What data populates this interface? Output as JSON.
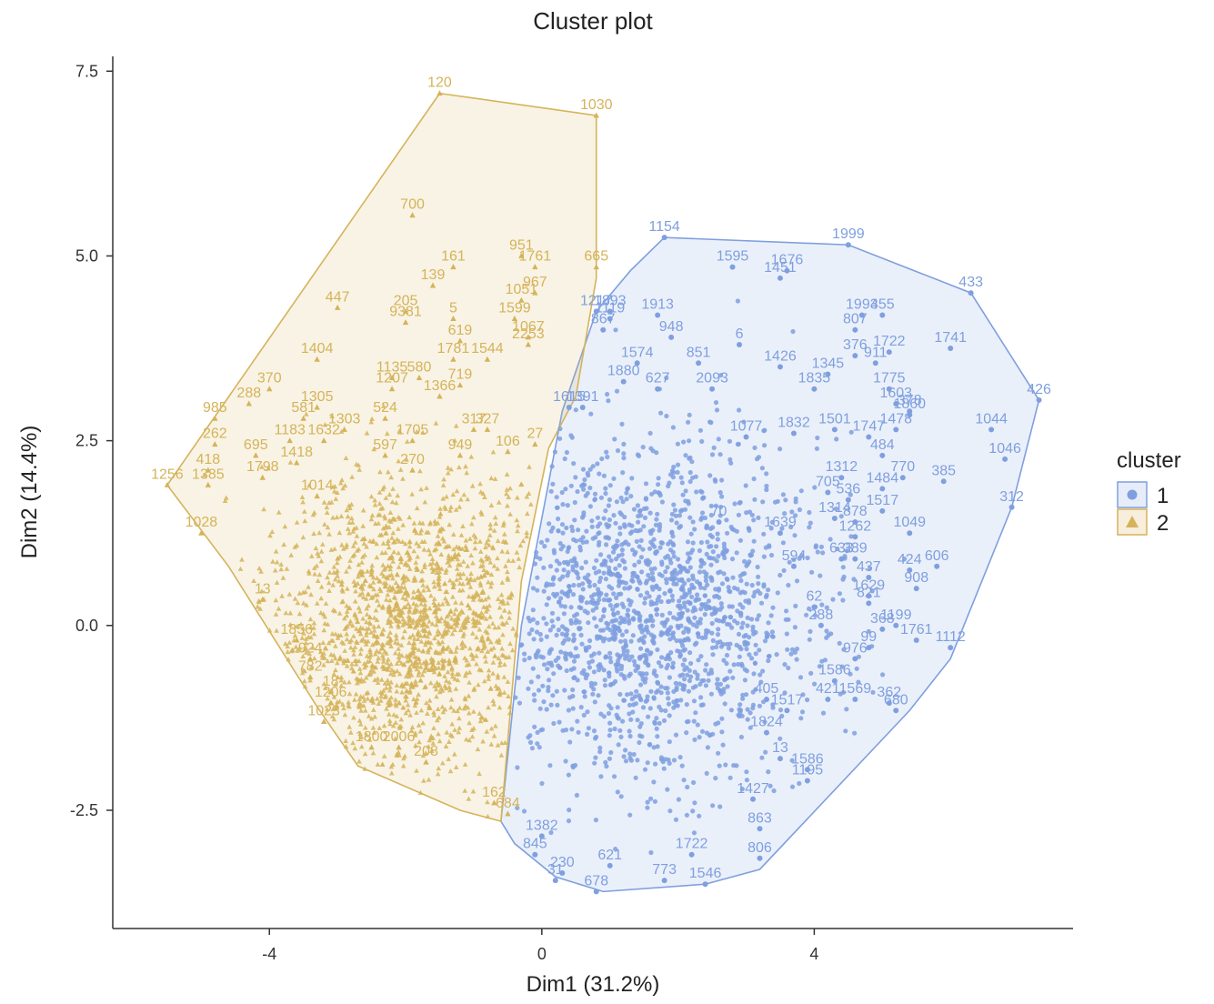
{
  "chart_data": {
    "type": "scatter",
    "title": "Cluster plot",
    "xlabel": "Dim1 (31.2%)",
    "ylabel": "Dim2 (14.4%)",
    "xlim": [
      -6.3,
      7.8
    ],
    "ylim": [
      -4.1,
      7.7
    ],
    "xticks": [
      -4,
      0,
      4
    ],
    "xtick_labels": [
      "-4",
      "0",
      "4"
    ],
    "yticks": [
      -2.5,
      0,
      2.5,
      5,
      7.5
    ],
    "ytick_labels": [
      "-2.5",
      "0.0",
      "2.5",
      "5.0",
      "7.5"
    ],
    "grid": false,
    "legend": {
      "title": "cluster",
      "position": "right"
    },
    "series": [
      {
        "name": "1",
        "color": "#7f9fdf",
        "marker": "circle",
        "hull": [
          [
            1.8,
            5.25
          ],
          [
            4.5,
            5.15
          ],
          [
            6.3,
            4.5
          ],
          [
            7.3,
            3.05
          ],
          [
            6.9,
            1.6
          ],
          [
            6.0,
            -0.45
          ],
          [
            5.4,
            -1.15
          ],
          [
            3.2,
            -3.3
          ],
          [
            2.4,
            -3.5
          ],
          [
            0.9,
            -3.6
          ],
          [
            0.2,
            -3.4
          ],
          [
            -0.4,
            -2.95
          ],
          [
            -0.6,
            -2.65
          ],
          [
            -0.3,
            0.0
          ],
          [
            0.3,
            2.9
          ],
          [
            0.8,
            4.25
          ],
          [
            1.3,
            4.8
          ]
        ],
        "labeled_points": [
          {
            "x": 1.8,
            "y": 5.25,
            "label": "1154"
          },
          {
            "x": 4.5,
            "y": 5.15,
            "label": "1999"
          },
          {
            "x": 6.3,
            "y": 4.5,
            "label": "433"
          },
          {
            "x": 7.3,
            "y": 3.05,
            "label": "426"
          },
          {
            "x": 6.0,
            "y": 3.75,
            "label": "1741"
          },
          {
            "x": 6.6,
            "y": 2.65,
            "label": "1044"
          },
          {
            "x": 6.8,
            "y": 2.25,
            "label": "1046"
          },
          {
            "x": 5.9,
            "y": 1.95,
            "label": "385"
          },
          {
            "x": 6.9,
            "y": 1.6,
            "label": "312"
          },
          {
            "x": 5.4,
            "y": 1.25,
            "label": "1049"
          },
          {
            "x": 5.8,
            "y": 0.8,
            "label": "606"
          },
          {
            "x": 5.4,
            "y": 0.75,
            "label": "424"
          },
          {
            "x": 5.5,
            "y": 0.5,
            "label": "908"
          },
          {
            "x": 6.0,
            "y": -0.3,
            "label": "1112"
          },
          {
            "x": 4.8,
            "y": 0.4,
            "label": "1629"
          },
          {
            "x": 5.2,
            "y": 0.0,
            "label": "1199"
          },
          {
            "x": 5.5,
            "y": -0.2,
            "label": "1761"
          },
          {
            "x": 5.0,
            "y": -0.05,
            "label": "368"
          },
          {
            "x": 5.2,
            "y": -1.15,
            "label": "680"
          },
          {
            "x": 5.1,
            "y": -1.05,
            "label": "362"
          },
          {
            "x": 4.6,
            "y": -1.0,
            "label": "1569"
          },
          {
            "x": 4.2,
            "y": -1.0,
            "label": "421"
          },
          {
            "x": 4.3,
            "y": -0.75,
            "label": "1586"
          },
          {
            "x": 4.6,
            "y": -0.45,
            "label": "976"
          },
          {
            "x": 4.8,
            "y": -0.3,
            "label": "99"
          },
          {
            "x": 4.1,
            "y": 0.0,
            "label": "288"
          },
          {
            "x": 3.9,
            "y": -1.95,
            "label": "1586"
          },
          {
            "x": 3.9,
            "y": -2.1,
            "label": "1195"
          },
          {
            "x": 3.5,
            "y": -1.8,
            "label": "13"
          },
          {
            "x": 3.1,
            "y": -2.35,
            "label": "1427"
          },
          {
            "x": 3.2,
            "y": -2.75,
            "label": "863"
          },
          {
            "x": 3.2,
            "y": -3.15,
            "label": "806"
          },
          {
            "x": 2.4,
            "y": -3.5,
            "label": "1546"
          },
          {
            "x": 2.2,
            "y": -3.1,
            "label": "1722"
          },
          {
            "x": 1.8,
            "y": -3.45,
            "label": "773"
          },
          {
            "x": 0.8,
            "y": -3.6,
            "label": "678"
          },
          {
            "x": 1.0,
            "y": -3.25,
            "label": "621"
          },
          {
            "x": 0.3,
            "y": -3.35,
            "label": "230"
          },
          {
            "x": 0.2,
            "y": -3.45,
            "label": "31"
          },
          {
            "x": -0.1,
            "y": -3.1,
            "label": "845"
          },
          {
            "x": 0.0,
            "y": -2.85,
            "label": "1382"
          },
          {
            "x": 2.8,
            "y": 4.85,
            "label": "1595"
          },
          {
            "x": 3.6,
            "y": 4.8,
            "label": "1676"
          },
          {
            "x": 3.5,
            "y": 4.7,
            "label": "1451"
          },
          {
            "x": 4.7,
            "y": 4.2,
            "label": "1993"
          },
          {
            "x": 5.0,
            "y": 4.2,
            "label": "455"
          },
          {
            "x": 4.6,
            "y": 4.0,
            "label": "807"
          },
          {
            "x": 1.7,
            "y": 4.2,
            "label": "1913"
          },
          {
            "x": 1.9,
            "y": 3.9,
            "label": "948"
          },
          {
            "x": 2.9,
            "y": 3.8,
            "label": "6"
          },
          {
            "x": 1.4,
            "y": 3.55,
            "label": "1574"
          },
          {
            "x": 2.3,
            "y": 3.55,
            "label": "851"
          },
          {
            "x": 3.5,
            "y": 3.5,
            "label": "1426"
          },
          {
            "x": 4.2,
            "y": 3.4,
            "label": "1345"
          },
          {
            "x": 4.6,
            "y": 3.65,
            "label": "376"
          },
          {
            "x": 4.9,
            "y": 3.55,
            "label": "911"
          },
          {
            "x": 5.1,
            "y": 3.7,
            "label": "1722"
          },
          {
            "x": 5.1,
            "y": 3.2,
            "label": "1775"
          },
          {
            "x": 5.2,
            "y": 3.0,
            "label": "1603"
          },
          {
            "x": 5.4,
            "y": 2.9,
            "label": "378"
          },
          {
            "x": 5.4,
            "y": 2.85,
            "label": "1860"
          },
          {
            "x": 5.2,
            "y": 2.65,
            "label": "1478"
          },
          {
            "x": 4.8,
            "y": 2.55,
            "label": "1747"
          },
          {
            "x": 5.0,
            "y": 2.3,
            "label": "484"
          },
          {
            "x": 5.3,
            "y": 2.0,
            "label": "770"
          },
          {
            "x": 5.0,
            "y": 1.85,
            "label": "1484"
          },
          {
            "x": 5.0,
            "y": 1.55,
            "label": "1517"
          },
          {
            "x": 4.5,
            "y": 1.7,
            "label": "536"
          },
          {
            "x": 4.6,
            "y": 1.4,
            "label": "878"
          },
          {
            "x": 4.3,
            "y": 1.45,
            "label": "1314"
          },
          {
            "x": 4.2,
            "y": 1.8,
            "label": "705"
          },
          {
            "x": 4.4,
            "y": 2.0,
            "label": "1312"
          },
          {
            "x": 4.3,
            "y": 2.65,
            "label": "1501"
          },
          {
            "x": 3.7,
            "y": 2.6,
            "label": "1832"
          },
          {
            "x": 3.0,
            "y": 2.55,
            "label": "1077"
          },
          {
            "x": 2.5,
            "y": 3.2,
            "label": "2093"
          },
          {
            "x": 4.0,
            "y": 3.2,
            "label": "1835"
          },
          {
            "x": 4.4,
            "y": 0.9,
            "label": "633"
          },
          {
            "x": 4.6,
            "y": 1.2,
            "label": "1262"
          },
          {
            "x": 4.6,
            "y": 0.9,
            "label": "389"
          },
          {
            "x": 4.8,
            "y": 0.65,
            "label": "437"
          },
          {
            "x": 4.8,
            "y": 0.3,
            "label": "821"
          },
          {
            "x": 3.7,
            "y": 0.8,
            "label": "594"
          },
          {
            "x": 3.5,
            "y": 1.25,
            "label": "1639"
          },
          {
            "x": 4.0,
            "y": 0.25,
            "label": "62"
          },
          {
            "x": 3.3,
            "y": -1.0,
            "label": "405"
          },
          {
            "x": 3.6,
            "y": -1.15,
            "label": "1517"
          },
          {
            "x": 3.3,
            "y": -1.45,
            "label": "1824"
          },
          {
            "x": 2.6,
            "y": 1.4,
            "label": "70"
          },
          {
            "x": 0.4,
            "y": 2.95,
            "label": "1615"
          },
          {
            "x": 0.6,
            "y": 2.95,
            "label": "1391"
          },
          {
            "x": 1.2,
            "y": 3.3,
            "label": "1880"
          },
          {
            "x": 1.7,
            "y": 3.2,
            "label": "627"
          },
          {
            "x": 0.8,
            "y": 4.25,
            "label": "1217"
          },
          {
            "x": 1.0,
            "y": 4.25,
            "label": "1893"
          },
          {
            "x": 1.0,
            "y": 4.15,
            "label": "1119"
          },
          {
            "x": 0.9,
            "y": 4.0,
            "label": "867"
          }
        ]
      },
      {
        "name": "2",
        "color": "#d5b35a",
        "marker": "triangle",
        "hull": [
          [
            -1.5,
            7.2
          ],
          [
            0.8,
            6.9
          ],
          [
            0.8,
            4.7
          ],
          [
            0.5,
            3.1
          ],
          [
            0.1,
            2.4
          ],
          [
            -0.3,
            0.6
          ],
          [
            -0.6,
            -2.65
          ],
          [
            -1.2,
            -2.5
          ],
          [
            -2.7,
            -1.9
          ],
          [
            -3.3,
            -1.1
          ],
          [
            -4.6,
            0.8
          ],
          [
            -5.5,
            1.9
          ]
        ],
        "labeled_points": [
          {
            "x": -1.5,
            "y": 7.2,
            "label": "120"
          },
          {
            "x": 0.8,
            "y": 6.9,
            "label": "1030"
          },
          {
            "x": -1.9,
            "y": 5.55,
            "label": "700"
          },
          {
            "x": -1.3,
            "y": 4.85,
            "label": "161"
          },
          {
            "x": -0.3,
            "y": 5.0,
            "label": "951"
          },
          {
            "x": -0.1,
            "y": 4.85,
            "label": "1761"
          },
          {
            "x": 0.8,
            "y": 4.85,
            "label": "665"
          },
          {
            "x": -1.6,
            "y": 4.6,
            "label": "139"
          },
          {
            "x": -3.0,
            "y": 4.3,
            "label": "447"
          },
          {
            "x": -2.0,
            "y": 4.25,
            "label": "205"
          },
          {
            "x": -0.3,
            "y": 4.4,
            "label": "1051"
          },
          {
            "x": -0.1,
            "y": 4.5,
            "label": "967"
          },
          {
            "x": -2.0,
            "y": 4.1,
            "label": "9381"
          },
          {
            "x": -1.3,
            "y": 4.15,
            "label": "5"
          },
          {
            "x": -0.4,
            "y": 4.15,
            "label": "1599"
          },
          {
            "x": -1.2,
            "y": 3.85,
            "label": "619"
          },
          {
            "x": -0.2,
            "y": 3.9,
            "label": "1067"
          },
          {
            "x": -0.2,
            "y": 3.8,
            "label": "2253"
          },
          {
            "x": -3.3,
            "y": 3.6,
            "label": "1404"
          },
          {
            "x": -1.3,
            "y": 3.6,
            "label": "1781"
          },
          {
            "x": -0.8,
            "y": 3.6,
            "label": "1544"
          },
          {
            "x": -2.2,
            "y": 3.35,
            "label": "1135"
          },
          {
            "x": -1.8,
            "y": 3.35,
            "label": "580"
          },
          {
            "x": -1.2,
            "y": 3.25,
            "label": "719"
          },
          {
            "x": -4.0,
            "y": 3.2,
            "label": "370"
          },
          {
            "x": -4.3,
            "y": 3.0,
            "label": "288"
          },
          {
            "x": -2.2,
            "y": 3.2,
            "label": "1207"
          },
          {
            "x": -1.5,
            "y": 3.1,
            "label": "1366"
          },
          {
            "x": -3.3,
            "y": 2.95,
            "label": "1305"
          },
          {
            "x": -4.8,
            "y": 2.8,
            "label": "985"
          },
          {
            "x": -3.5,
            "y": 2.8,
            "label": "581"
          },
          {
            "x": -2.3,
            "y": 2.8,
            "label": "524"
          },
          {
            "x": -2.9,
            "y": 2.65,
            "label": "1303"
          },
          {
            "x": -1.0,
            "y": 2.65,
            "label": "317"
          },
          {
            "x": -0.8,
            "y": 2.65,
            "label": "327"
          },
          {
            "x": -3.7,
            "y": 2.5,
            "label": "1183"
          },
          {
            "x": -3.2,
            "y": 2.5,
            "label": "1632"
          },
          {
            "x": -1.9,
            "y": 2.5,
            "label": "1705"
          },
          {
            "x": -4.8,
            "y": 2.45,
            "label": "262"
          },
          {
            "x": -2.3,
            "y": 2.3,
            "label": "597"
          },
          {
            "x": -0.5,
            "y": 2.35,
            "label": "106"
          },
          {
            "x": -0.1,
            "y": 2.45,
            "label": "27"
          },
          {
            "x": -4.2,
            "y": 2.3,
            "label": "695"
          },
          {
            "x": -1.2,
            "y": 2.3,
            "label": "949"
          },
          {
            "x": -4.9,
            "y": 2.1,
            "label": "418"
          },
          {
            "x": -3.6,
            "y": 2.2,
            "label": "1418"
          },
          {
            "x": -1.9,
            "y": 2.1,
            "label": "270"
          },
          {
            "x": -4.1,
            "y": 2.0,
            "label": "1798"
          },
          {
            "x": -4.9,
            "y": 1.9,
            "label": "1385"
          },
          {
            "x": -5.5,
            "y": 1.9,
            "label": "1256"
          },
          {
            "x": -3.3,
            "y": 1.75,
            "label": "1014"
          },
          {
            "x": -5.0,
            "y": 1.25,
            "label": "1028"
          },
          {
            "x": -4.1,
            "y": 0.35,
            "label": "13"
          },
          {
            "x": -3.6,
            "y": -0.2,
            "label": "1856"
          },
          {
            "x": -3.4,
            "y": -0.45,
            "label": "924"
          },
          {
            "x": -3.4,
            "y": -0.7,
            "label": "782"
          },
          {
            "x": -3.1,
            "y": -0.9,
            "label": "18"
          },
          {
            "x": -3.1,
            "y": -1.05,
            "label": "1206"
          },
          {
            "x": -3.2,
            "y": -1.3,
            "label": "1023"
          },
          {
            "x": -2.5,
            "y": -1.65,
            "label": "1800"
          },
          {
            "x": -2.1,
            "y": -1.65,
            "label": "2006"
          },
          {
            "x": -1.7,
            "y": -1.85,
            "label": "208"
          },
          {
            "x": -0.7,
            "y": -2.4,
            "label": "162"
          },
          {
            "x": -0.5,
            "y": -2.55,
            "label": "684"
          }
        ]
      }
    ]
  }
}
